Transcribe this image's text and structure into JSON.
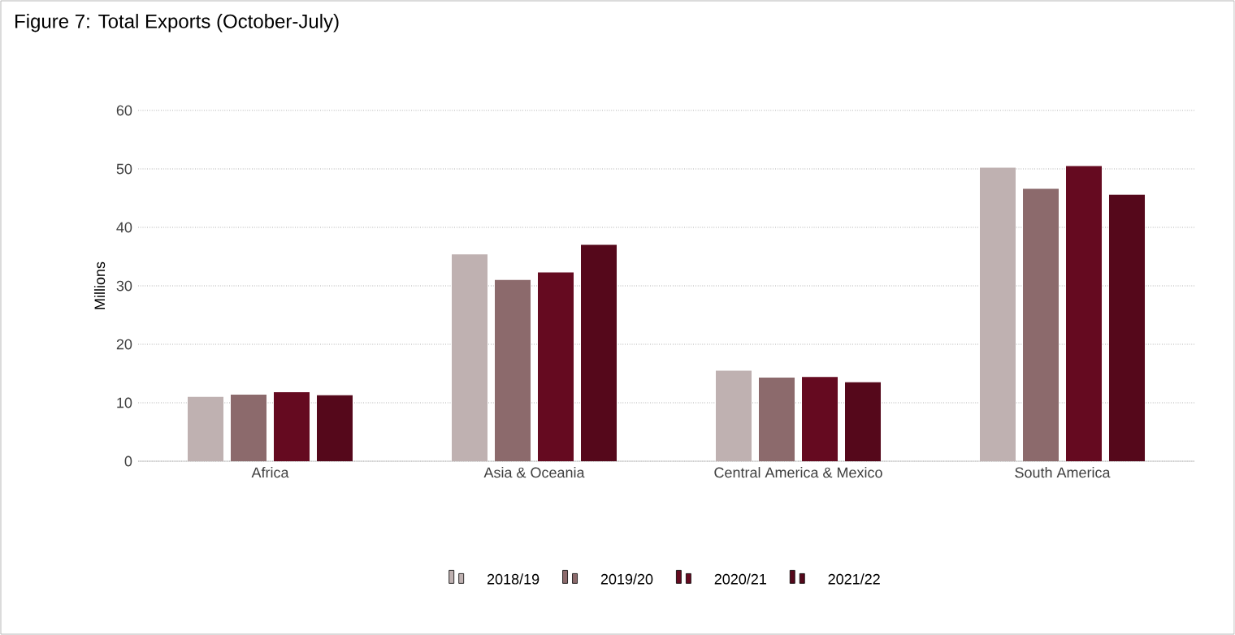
{
  "chart_data": {
    "type": "bar",
    "title": "Figure 7: Total Exports (October-July)",
    "ylabel": "Millions",
    "categories": [
      "Africa",
      "Asia & Oceania",
      "Central America & Mexico",
      "South America"
    ],
    "series": [
      {
        "name": "2018/19",
        "color": "#bfb1b1",
        "values": [
          11.0,
          35.4,
          15.5,
          50.2
        ]
      },
      {
        "name": "2019/20",
        "color": "#8c6a6c",
        "values": [
          11.4,
          31.0,
          14.3,
          46.6
        ]
      },
      {
        "name": "2020/21",
        "color": "#650a20",
        "values": [
          11.8,
          32.3,
          14.4,
          50.5
        ]
      },
      {
        "name": "2021/22",
        "color": "#55081b",
        "values": [
          11.3,
          37.0,
          13.5,
          45.6
        ]
      }
    ],
    "ylim": [
      0,
      60
    ],
    "yticks": [
      0,
      10,
      20,
      30,
      40,
      50,
      60
    ],
    "grid": "y",
    "legend": "bottom"
  }
}
